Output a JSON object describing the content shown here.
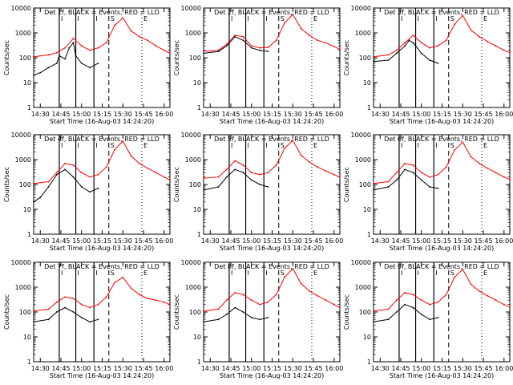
{
  "figure": {
    "xlabel": "Start Time (16-Aug-03 14:24:20)",
    "ylabel": "Counts/sec",
    "x_tick_labels": [
      "14:30",
      "14:45",
      "15:00",
      "15:15",
      "15:30",
      "15:45",
      "16:00"
    ],
    "y_tick_labels": [
      "1",
      "10",
      "100",
      "1000",
      "10000"
    ],
    "marker_labels": [
      "I",
      "S",
      "E"
    ],
    "colors": {
      "events": "#000000",
      "lld": "#ff0000",
      "background": "#ffffff"
    }
  },
  "chart_data": [
    {
      "type": "line",
      "title": "Det 1f, BLACK = Events, RED = LLD",
      "xlim": [
        14.42,
        16.07
      ],
      "ylim": [
        1,
        10000
      ],
      "yscale": "log",
      "vlines_solid": [
        14.73,
        14.93,
        15.15
      ],
      "vlines_dashed": [
        15.33
      ],
      "vlines_dotted": [
        15.73
      ],
      "series": [
        {
          "name": "Events",
          "color": "#000000",
          "x": [
            14.42,
            14.5,
            14.6,
            14.7,
            14.73,
            14.8,
            14.85,
            14.9,
            14.93,
            15.0,
            15.1,
            15.2
          ],
          "values": [
            20,
            25,
            40,
            60,
            120,
            90,
            250,
            400,
            120,
            60,
            40,
            60
          ]
        },
        {
          "name": "LLD",
          "color": "#ff0000",
          "x": [
            14.42,
            14.6,
            14.7,
            14.8,
            14.9,
            15.0,
            15.1,
            15.2,
            15.3,
            15.4,
            15.5,
            15.6,
            15.7,
            15.8,
            15.9,
            16.0,
            16.07
          ],
          "values": [
            110,
            130,
            160,
            250,
            600,
            300,
            200,
            250,
            400,
            2000,
            4000,
            1200,
            700,
            500,
            300,
            200,
            150
          ]
        }
      ]
    },
    {
      "type": "line",
      "title": "Det 2f, BLACK = Events, RED = LLD",
      "xlim": [
        14.42,
        16.07
      ],
      "ylim": [
        1,
        10000
      ],
      "yscale": "log",
      "vlines_solid": [
        14.73,
        14.93,
        15.15
      ],
      "vlines_dashed": [
        15.33
      ],
      "vlines_dotted": [
        15.73
      ],
      "series": [
        {
          "name": "Events",
          "color": "#000000",
          "x": [
            14.42,
            14.6,
            14.7,
            14.8,
            14.9,
            15.0,
            15.1,
            15.2
          ],
          "values": [
            150,
            180,
            300,
            700,
            500,
            250,
            200,
            180
          ]
        },
        {
          "name": "LLD",
          "color": "#ff0000",
          "x": [
            14.42,
            14.6,
            14.7,
            14.8,
            14.9,
            15.0,
            15.1,
            15.2,
            15.3,
            15.4,
            15.5,
            15.6,
            15.7,
            15.8,
            15.9,
            16.0,
            16.07
          ],
          "values": [
            180,
            200,
            350,
            800,
            700,
            300,
            250,
            260,
            500,
            2500,
            5500,
            1500,
            800,
            500,
            400,
            280,
            220
          ]
        }
      ]
    },
    {
      "type": "line",
      "title": "Det 3f, BLACK = Events, RED = LLD",
      "xlim": [
        14.42,
        16.07
      ],
      "ylim": [
        1,
        10000
      ],
      "yscale": "log",
      "vlines_solid": [
        14.73,
        14.93,
        15.15
      ],
      "vlines_dashed": [
        15.33
      ],
      "vlines_dotted": [
        15.73
      ],
      "series": [
        {
          "name": "Events",
          "color": "#000000",
          "x": [
            14.42,
            14.6,
            14.7,
            14.8,
            14.85,
            14.9,
            15.0,
            15.1,
            15.2
          ],
          "values": [
            70,
            80,
            150,
            300,
            500,
            400,
            150,
            80,
            60
          ]
        },
        {
          "name": "LLD",
          "color": "#ff0000",
          "x": [
            14.42,
            14.6,
            14.7,
            14.8,
            14.9,
            15.0,
            15.1,
            15.2,
            15.3,
            15.4,
            15.5,
            15.6,
            15.7,
            15.8,
            15.9,
            16.0,
            16.07
          ],
          "values": [
            110,
            130,
            200,
            400,
            800,
            400,
            250,
            300,
            500,
            2200,
            5000,
            1300,
            700,
            450,
            300,
            200,
            160
          ]
        }
      ]
    },
    {
      "type": "line",
      "title": "Det 4f, BLACK = Events, RED = LLD",
      "xlim": [
        14.42,
        16.07
      ],
      "ylim": [
        1,
        10000
      ],
      "yscale": "log",
      "vlines_solid": [
        14.73,
        14.93,
        15.15
      ],
      "vlines_dashed": [
        15.33
      ],
      "vlines_dotted": [
        15.73
      ],
      "series": [
        {
          "name": "Events",
          "color": "#000000",
          "x": [
            14.42,
            14.5,
            14.6,
            14.7,
            14.8,
            14.9,
            15.0,
            15.1,
            15.2
          ],
          "values": [
            20,
            30,
            80,
            250,
            400,
            200,
            80,
            50,
            70
          ]
        },
        {
          "name": "LLD",
          "color": "#ff0000",
          "x": [
            14.42,
            14.6,
            14.7,
            14.8,
            14.9,
            15.0,
            15.1,
            15.2,
            15.3,
            15.4,
            15.5,
            15.6,
            15.7,
            15.8,
            15.9,
            16.0,
            16.07
          ],
          "values": [
            110,
            130,
            300,
            700,
            600,
            300,
            200,
            250,
            500,
            2500,
            5500,
            1400,
            700,
            450,
            300,
            200,
            150
          ]
        }
      ]
    },
    {
      "type": "line",
      "title": "Det 5f, BLACK = Events, RED = LLD",
      "xlim": [
        14.42,
        16.07
      ],
      "ylim": [
        1,
        10000
      ],
      "yscale": "log",
      "vlines_solid": [
        14.73,
        14.93,
        15.15
      ],
      "vlines_dashed": [
        15.33
      ],
      "vlines_dotted": [
        15.73
      ],
      "series": [
        {
          "name": "Events",
          "color": "#000000",
          "x": [
            14.42,
            14.6,
            14.7,
            14.8,
            14.9,
            15.0,
            15.1,
            15.2
          ],
          "values": [
            60,
            80,
            200,
            400,
            300,
            150,
            100,
            80
          ]
        },
        {
          "name": "LLD",
          "color": "#ff0000",
          "x": [
            14.42,
            14.6,
            14.7,
            14.8,
            14.9,
            15.0,
            15.1,
            15.2,
            15.3,
            15.4,
            15.5,
            15.6,
            15.7,
            15.8,
            15.9,
            16.0,
            16.07
          ],
          "values": [
            180,
            200,
            400,
            900,
            600,
            300,
            250,
            300,
            600,
            2800,
            6000,
            1500,
            800,
            500,
            350,
            250,
            200
          ]
        }
      ]
    },
    {
      "type": "line",
      "title": "Det 6f, BLACK = Events, RED = LLD",
      "xlim": [
        14.42,
        16.07
      ],
      "ylim": [
        1,
        10000
      ],
      "yscale": "log",
      "vlines_solid": [
        14.73,
        14.93,
        15.15
      ],
      "vlines_dashed": [
        15.33
      ],
      "vlines_dotted": [
        15.73
      ],
      "series": [
        {
          "name": "Events",
          "color": "#000000",
          "x": [
            14.42,
            14.6,
            14.7,
            14.8,
            14.9,
            15.0,
            15.1,
            15.2
          ],
          "values": [
            60,
            80,
            150,
            400,
            300,
            150,
            80,
            70
          ]
        },
        {
          "name": "LLD",
          "color": "#ff0000",
          "x": [
            14.42,
            14.6,
            14.7,
            14.8,
            14.9,
            15.0,
            15.1,
            15.2,
            15.3,
            15.4,
            15.5,
            15.6,
            15.7,
            15.8,
            15.9,
            16.0,
            16.07
          ],
          "values": [
            110,
            130,
            300,
            700,
            600,
            300,
            200,
            250,
            500,
            2400,
            5000,
            1300,
            700,
            450,
            300,
            200,
            160
          ]
        }
      ]
    },
    {
      "type": "line",
      "title": "Det 7f, BLACK = Events, RED = LLD",
      "xlim": [
        14.42,
        16.07
      ],
      "ylim": [
        1,
        10000
      ],
      "yscale": "log",
      "vlines_solid": [
        14.73,
        14.93,
        15.15
      ],
      "vlines_dashed": [
        15.33
      ],
      "vlines_dotted": [
        15.73
      ],
      "series": [
        {
          "name": "Events",
          "color": "#000000",
          "x": [
            14.42,
            14.6,
            14.7,
            14.8,
            14.9,
            15.0,
            15.1,
            15.2
          ],
          "values": [
            40,
            50,
            100,
            150,
            100,
            60,
            40,
            50
          ]
        },
        {
          "name": "LLD",
          "color": "#ff0000",
          "x": [
            14.42,
            14.6,
            14.7,
            14.8,
            14.9,
            15.0,
            15.1,
            15.2,
            15.3,
            15.4,
            15.5,
            15.6,
            15.7,
            15.8,
            15.9,
            16.0,
            16.07
          ],
          "values": [
            110,
            130,
            250,
            400,
            350,
            200,
            150,
            200,
            400,
            1500,
            2500,
            900,
            500,
            350,
            300,
            250,
            200
          ]
        }
      ]
    },
    {
      "type": "line",
      "title": "Det 8f, BLACK = Events, RED = LLD",
      "xlim": [
        14.42,
        16.07
      ],
      "ylim": [
        1,
        10000
      ],
      "yscale": "log",
      "vlines_solid": [
        14.73,
        14.93,
        15.15
      ],
      "vlines_dashed": [
        15.33
      ],
      "vlines_dotted": [
        15.73
      ],
      "series": [
        {
          "name": "Events",
          "color": "#000000",
          "x": [
            14.42,
            14.6,
            14.7,
            14.8,
            14.9,
            15.0,
            15.1,
            15.2
          ],
          "values": [
            40,
            50,
            80,
            150,
            100,
            60,
            50,
            60
          ]
        },
        {
          "name": "LLD",
          "color": "#ff0000",
          "x": [
            14.42,
            14.6,
            14.7,
            14.8,
            14.9,
            15.0,
            15.1,
            15.2,
            15.3,
            15.4,
            15.5,
            15.6,
            15.7,
            15.8,
            15.9,
            16.0,
            16.07
          ],
          "values": [
            110,
            130,
            300,
            600,
            500,
            300,
            200,
            250,
            500,
            2500,
            5500,
            1400,
            700,
            450,
            300,
            200,
            150
          ]
        }
      ]
    },
    {
      "type": "line",
      "title": "Det 9f, BLACK = Events, RED = LLD",
      "xlim": [
        14.42,
        16.07
      ],
      "ylim": [
        1,
        10000
      ],
      "yscale": "log",
      "vlines_solid": [
        14.73,
        14.93,
        15.15
      ],
      "vlines_dashed": [
        15.33
      ],
      "vlines_dotted": [
        15.73
      ],
      "series": [
        {
          "name": "Events",
          "color": "#000000",
          "x": [
            14.42,
            14.6,
            14.7,
            14.8,
            14.9,
            15.0,
            15.1,
            15.2
          ],
          "values": [
            40,
            50,
            100,
            200,
            150,
            80,
            50,
            60
          ]
        },
        {
          "name": "LLD",
          "color": "#ff0000",
          "x": [
            14.42,
            14.6,
            14.7,
            14.8,
            14.9,
            15.0,
            15.1,
            15.2,
            15.3,
            15.4,
            15.5,
            15.6,
            15.7,
            15.8,
            15.9,
            16.0,
            16.07
          ],
          "values": [
            110,
            130,
            300,
            600,
            500,
            300,
            200,
            250,
            500,
            2500,
            5200,
            1300,
            700,
            450,
            300,
            200,
            160
          ]
        }
      ]
    }
  ]
}
